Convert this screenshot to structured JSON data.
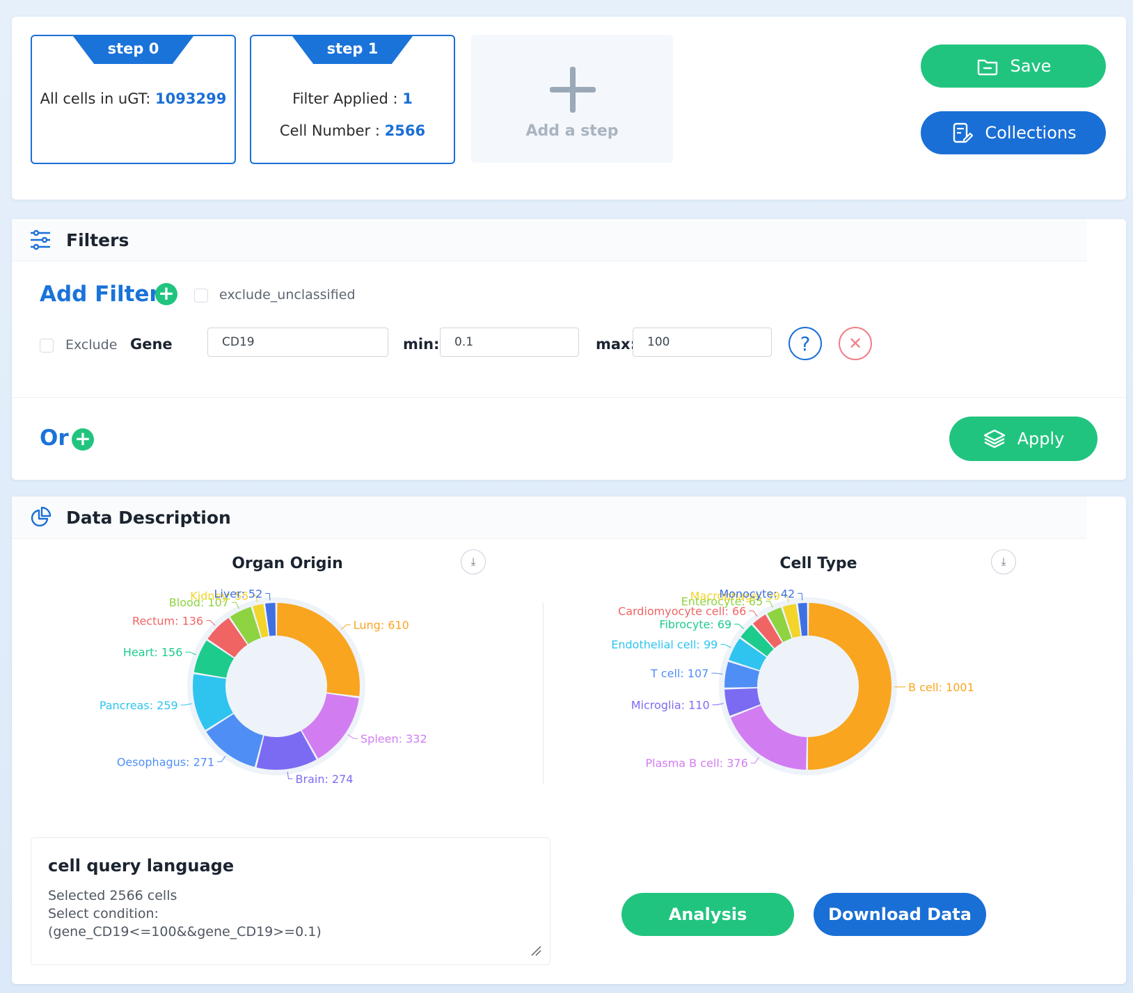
{
  "steps": [
    {
      "tab": "step 0",
      "label": "All cells in uGT: ",
      "value": "1093299"
    },
    {
      "tab": "step 1",
      "filter_label": "Filter Applied : ",
      "filter_value": "1",
      "cell_label": "Cell Number : ",
      "cell_value": "2566"
    }
  ],
  "add_step_label": "Add a step",
  "actions": {
    "save": "Save",
    "collections": "Collections"
  },
  "filters": {
    "title": "Filters",
    "add_filter": "Add Filter",
    "exclude_unclassified": "exclude_unclassified",
    "row": {
      "exclude_label": "Exclude",
      "type_label": "Gene",
      "gene_value": "CD19",
      "min_label": "min:",
      "min_value": "0.1",
      "max_label": "max:",
      "max_value": "100"
    },
    "help_icon": "?",
    "remove_icon": "✕",
    "or_label": "Or",
    "apply": "Apply"
  },
  "data_description": {
    "title": "Data Description",
    "download_icon": "⤓"
  },
  "chart_data": [
    {
      "type": "pie",
      "title": "Organ Origin",
      "categories": [
        "Lung",
        "Spleen",
        "Brain",
        "Oesophagus",
        "Pancreas",
        "Heart",
        "Rectum",
        "Blood",
        "Kidney",
        "Liver"
      ],
      "values": [
        610,
        332,
        274,
        271,
        259,
        156,
        136,
        107,
        55,
        52
      ],
      "colors": [
        "#f9a51f",
        "#d27cf1",
        "#7b6bf2",
        "#4f8ef5",
        "#2ec4ef",
        "#1dcb8c",
        "#f06464",
        "#8ed341",
        "#f2d42a",
        "#3f6fe3"
      ],
      "labels": [
        "Lung: 610",
        "Spleen: 332",
        "Brain: 274",
        "Oesophagus: 271",
        "Pancreas: 259",
        "Heart: 156",
        "Rectum: 136",
        "Blood: 107",
        "Kidney: 55",
        "Liver: 52"
      ]
    },
    {
      "type": "pie",
      "title": "Cell Type",
      "categories": [
        "B cell",
        "Plasma B cell",
        "Microglia",
        "T cell",
        "Endothelial cell",
        "Fibrocyte",
        "Cardiomyocyte cell",
        "Enterocyte",
        "Macrophage",
        "Monocyte"
      ],
      "values": [
        1001,
        376,
        110,
        107,
        99,
        69,
        66,
        65,
        59,
        42
      ],
      "colors": [
        "#f9a51f",
        "#d27cf1",
        "#7b6bf2",
        "#4f8ef5",
        "#2ec4ef",
        "#1dcb8c",
        "#f06464",
        "#8ed341",
        "#f2d42a",
        "#3f6fe3"
      ],
      "labels": [
        "B cell: 1001",
        "Plasma B cell: 376",
        "Microglia: 110",
        "T cell: 107",
        "Endothelial cell: 99",
        "Fibrocyte: 69",
        "Cardiomyocyte cell: 66",
        "Enterocyte: 65",
        "Macrophage: 59",
        "Monocyte: 42"
      ]
    }
  ],
  "cql": {
    "title": "cell query language",
    "line1": "Selected 2566 cells",
    "line2": "Select condition:",
    "line3": "(gene_CD19<=100&&gene_CD19>=0.1)"
  },
  "bottom_actions": {
    "analysis": "Analysis",
    "download": "Download Data"
  },
  "colors": {
    "primary_blue": "#1a6fd6",
    "green": "#21c47f",
    "danger": "#f07f86"
  }
}
